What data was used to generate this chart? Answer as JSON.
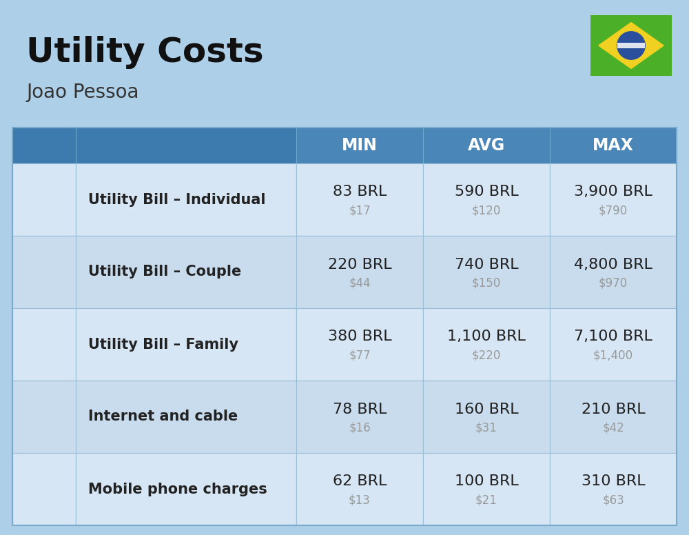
{
  "title": "Utility Costs",
  "subtitle": "Joao Pessoa",
  "background_color": "#aecfe8",
  "header_color": "#4a86b8",
  "row_color": "#d6e6f4",
  "row_color_alt": "#c8dced",
  "header_text_color": "#ffffff",
  "title_color": "#111111",
  "subtitle_color": "#333333",
  "main_text_color": "#222222",
  "secondary_text_color": "#999999",
  "col_headers": [
    "MIN",
    "AVG",
    "MAX"
  ],
  "rows": [
    {
      "label": "Utility Bill – Individual",
      "min_brl": "83 BRL",
      "min_usd": "$17",
      "avg_brl": "590 BRL",
      "avg_usd": "$120",
      "max_brl": "3,900 BRL",
      "max_usd": "$790"
    },
    {
      "label": "Utility Bill – Couple",
      "min_brl": "220 BRL",
      "min_usd": "$44",
      "avg_brl": "740 BRL",
      "avg_usd": "$150",
      "max_brl": "4,800 BRL",
      "max_usd": "$970"
    },
    {
      "label": "Utility Bill – Family",
      "min_brl": "380 BRL",
      "min_usd": "$77",
      "avg_brl": "1,100 BRL",
      "avg_usd": "$220",
      "max_brl": "7,100 BRL",
      "max_usd": "$1,400"
    },
    {
      "label": "Internet and cable",
      "min_brl": "78 BRL",
      "min_usd": "$16",
      "avg_brl": "160 BRL",
      "avg_usd": "$31",
      "max_brl": "210 BRL",
      "max_usd": "$42"
    },
    {
      "label": "Mobile phone charges",
      "min_brl": "62 BRL",
      "min_usd": "$13",
      "avg_brl": "100 BRL",
      "avg_usd": "$21",
      "max_brl": "310 BRL",
      "max_usd": "$63"
    }
  ],
  "flag_green": "#4caf28",
  "flag_yellow": "#f0d020",
  "flag_blue": "#2a4f9c",
  "figsize": [
    10.0,
    7.76
  ],
  "dpi": 100
}
